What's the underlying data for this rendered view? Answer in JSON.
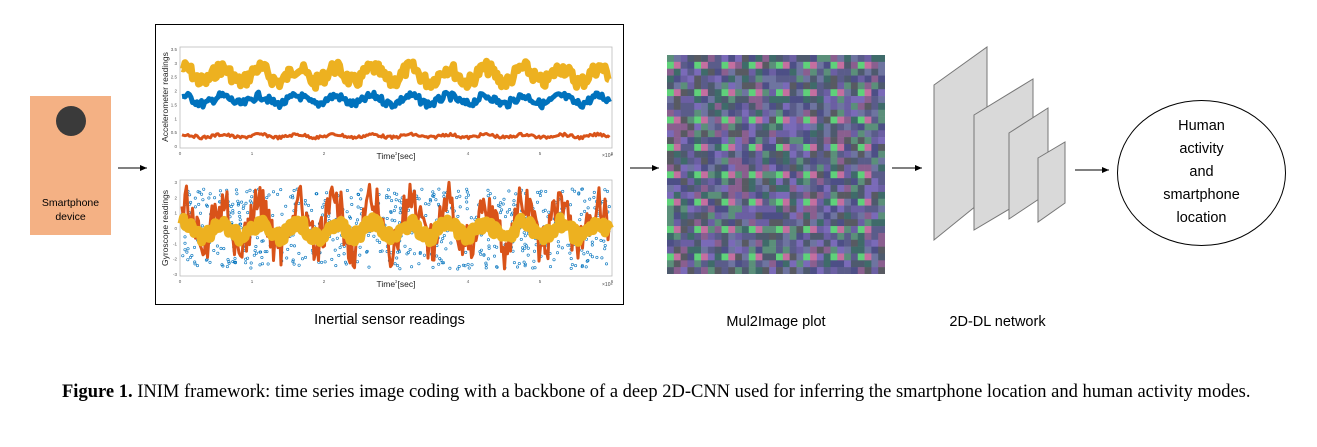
{
  "smartphone": {
    "label_line1": "Smartphone",
    "label_line2": "device",
    "color": "#f4b184"
  },
  "sensor_panel": {
    "title": "Inertial sensor readings",
    "accelerometer": {
      "ylabel": "Accelerometer readings",
      "xlabel": "Time [sec]",
      "exponent": "×10⁴",
      "yticks": [
        "3.5",
        "3",
        "2.5",
        "2",
        "1.5",
        "1",
        "0.5",
        "0"
      ],
      "xticks": [
        "0",
        "1",
        "2",
        "3",
        "4",
        "5",
        "6"
      ]
    },
    "gyroscope": {
      "ylabel": "Gyroscope readings",
      "xlabel": "Time [sec]",
      "exponent": "×10⁴",
      "yticks": [
        "3",
        "2",
        "1",
        "0",
        "-1",
        "-2",
        "-3"
      ],
      "xticks": [
        "0",
        "1",
        "2",
        "3",
        "4",
        "5",
        "6"
      ]
    },
    "series_colors": {
      "yellow": "#edb120",
      "blue": "#0072bd",
      "orange": "#d95319"
    }
  },
  "mul2image": {
    "label": "Mul2Image plot"
  },
  "network": {
    "label": "2D-DL network"
  },
  "output": {
    "line1": "Human",
    "line2": "activity",
    "line3": "and",
    "line4": "smartphone",
    "line5": "location"
  },
  "caption": {
    "figure_label": "Figure 1.",
    "text": " INIM framework: time series image coding with a backbone of a deep 2D-CNN used for inferring the smartphone location and human activity modes."
  }
}
